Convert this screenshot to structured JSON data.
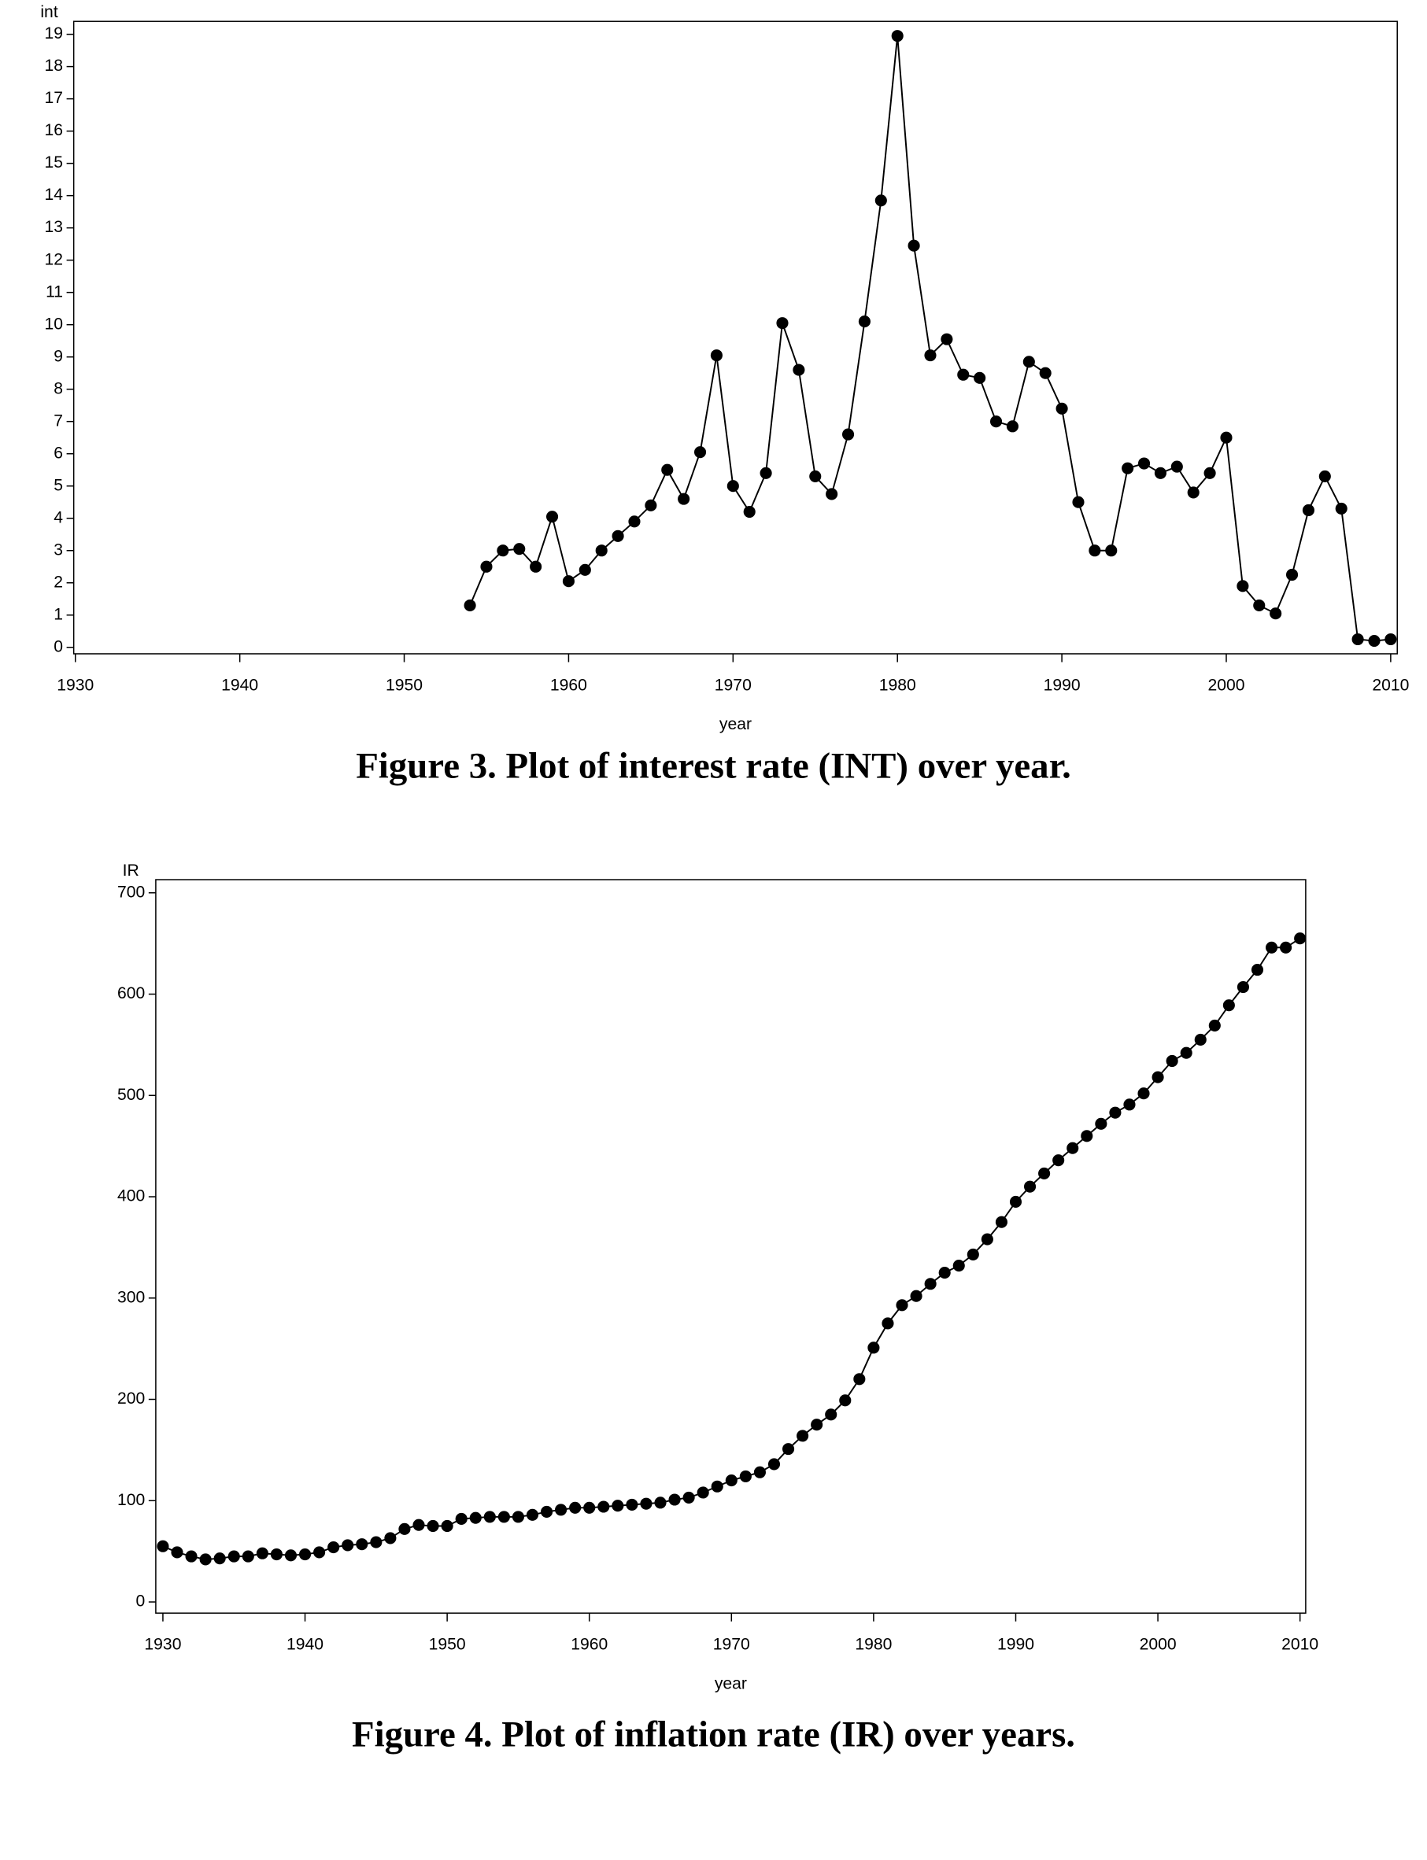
{
  "chart_data": [
    {
      "type": "line",
      "y_label": "int",
      "x_label": "year",
      "caption": "Figure 3. Plot of interest rate (INT) over year.",
      "color": "#000000",
      "x": [
        1954,
        1955,
        1956,
        1957,
        1958,
        1959,
        1960,
        1961,
        1962,
        1963,
        1964,
        1965,
        1966,
        1967,
        1968,
        1969,
        1970,
        1971,
        1972,
        1973,
        1974,
        1975,
        1976,
        1977,
        1978,
        1979,
        1980,
        1981,
        1982,
        1983,
        1984,
        1985,
        1986,
        1987,
        1988,
        1989,
        1990,
        1991,
        1992,
        1993,
        1994,
        1995,
        1996,
        1997,
        1998,
        1999,
        2000,
        2001,
        2002,
        2003,
        2004,
        2005,
        2006,
        2007,
        2008,
        2009,
        2010
      ],
      "values": [
        1.3,
        2.5,
        3.0,
        3.05,
        2.5,
        4.05,
        2.05,
        2.4,
        3.0,
        3.45,
        3.9,
        4.4,
        5.5,
        4.6,
        6.05,
        9.05,
        5.0,
        4.2,
        5.4,
        10.05,
        8.6,
        5.3,
        4.75,
        6.6,
        10.1,
        13.85,
        18.95,
        12.45,
        9.05,
        9.55,
        8.45,
        8.35,
        7.0,
        6.85,
        8.85,
        8.5,
        7.4,
        4.5,
        3.0,
        3.0,
        5.55,
        5.7,
        5.4,
        5.6,
        4.8,
        5.4,
        6.5,
        1.9,
        1.3,
        1.05,
        2.25,
        4.25,
        5.3,
        4.3,
        0.25,
        0.2,
        0.25
      ],
      "xlim": [
        1929.9,
        2010.4
      ],
      "xticks": [
        1930,
        1940,
        1950,
        1960,
        1970,
        1980,
        1990,
        2000,
        2010
      ],
      "ylim": [
        -0.2,
        19.4
      ],
      "yticks": [
        0,
        1,
        2,
        3,
        4,
        5,
        6,
        7,
        8,
        9,
        10,
        11,
        12,
        13,
        14,
        15,
        16,
        17,
        18,
        19
      ]
    },
    {
      "type": "line",
      "y_label": "IR",
      "x_label": "year",
      "caption": "Figure 4. Plot of inflation rate (IR) over years.",
      "color": "#000000",
      "x": [
        1930,
        1931,
        1932,
        1933,
        1934,
        1935,
        1936,
        1937,
        1938,
        1939,
        1940,
        1941,
        1942,
        1943,
        1944,
        1945,
        1946,
        1947,
        1948,
        1949,
        1950,
        1951,
        1952,
        1953,
        1954,
        1955,
        1956,
        1957,
        1958,
        1959,
        1960,
        1961,
        1962,
        1963,
        1964,
        1965,
        1966,
        1967,
        1968,
        1969,
        1970,
        1971,
        1972,
        1973,
        1974,
        1975,
        1976,
        1977,
        1978,
        1979,
        1980,
        1981,
        1982,
        1983,
        1984,
        1985,
        1986,
        1987,
        1988,
        1989,
        1990,
        1991,
        1992,
        1993,
        1994,
        1995,
        1996,
        1997,
        1998,
        1999,
        2000,
        2001,
        2002,
        2003,
        2004,
        2005,
        2006,
        2007,
        2008,
        2009,
        2010
      ],
      "values": [
        55,
        49,
        45,
        42,
        43,
        45,
        45,
        48,
        47,
        46,
        47,
        49,
        54,
        56,
        57,
        59,
        63,
        72,
        76,
        75,
        75,
        82,
        83,
        84,
        84,
        84,
        86,
        89,
        91,
        93,
        93,
        94,
        95,
        96,
        97,
        98,
        101,
        103,
        108,
        114,
        120,
        124,
        128,
        136,
        151,
        164,
        175,
        185,
        199,
        220,
        251,
        275,
        293,
        302,
        314,
        325,
        332,
        343,
        358,
        375,
        395,
        410,
        423,
        436,
        448,
        460,
        472,
        483,
        491,
        502,
        518,
        534,
        542,
        555,
        569,
        589,
        607,
        624,
        646,
        646,
        655
      ],
      "xlim": [
        1929.5,
        2010.4
      ],
      "xticks": [
        1930,
        1940,
        1950,
        1960,
        1970,
        1980,
        1990,
        2000,
        2010
      ],
      "ylim": [
        -11,
        713
      ],
      "yticks": [
        0,
        100,
        200,
        300,
        400,
        500,
        600,
        700
      ]
    }
  ]
}
